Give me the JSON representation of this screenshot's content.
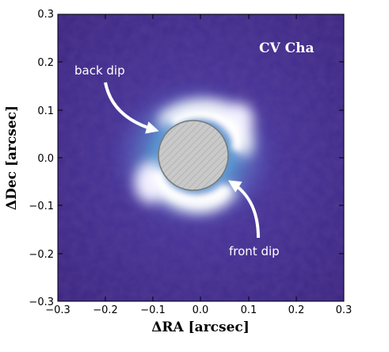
{
  "image": {
    "object_label": "CV Cha",
    "annotations": {
      "back": "back dip",
      "front": "front dip"
    },
    "axes": {
      "xlabel": "ΔRA [arcsec]",
      "ylabel": "ΔDec [arcsec]",
      "xlim": [
        -0.3,
        0.3
      ],
      "ylim": [
        -0.3,
        0.3
      ],
      "xticks": [
        "−0.3",
        "−0.2",
        "−0.1",
        "0.0",
        "0.1",
        "0.2",
        "0.3"
      ],
      "yticks": [
        "0.3",
        "0.2",
        "0.1",
        "0.0",
        "−0.1",
        "−0.2",
        "−0.3"
      ]
    },
    "colors": {
      "background": "#3d2a84",
      "disk_glow": "#ffffff",
      "mask": "#c9c9c9",
      "arrow": "#ffffff"
    }
  }
}
